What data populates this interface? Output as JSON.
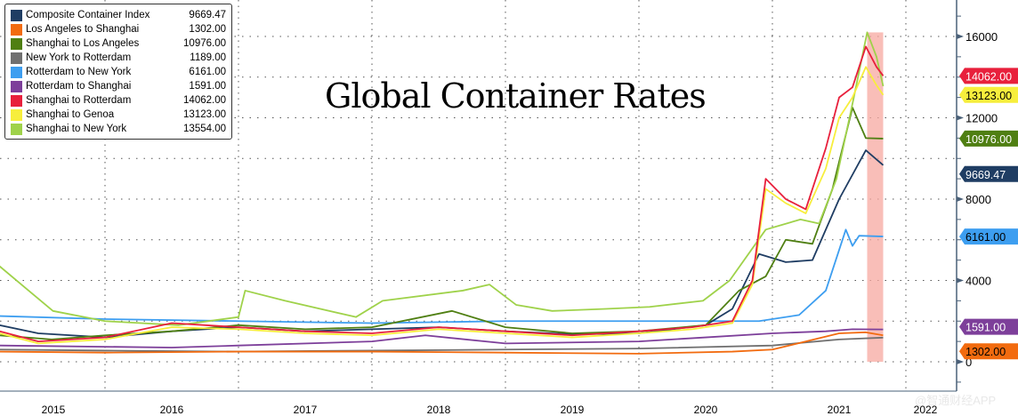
{
  "chart_data": {
    "type": "line",
    "title": "Global Container Rates",
    "xlabel": "",
    "ylabel": "",
    "xlim": [
      2015.21,
      2022.38
    ],
    "ylim": [
      -800,
      18500
    ],
    "yticks": [
      0,
      4000,
      8000,
      12000,
      16000
    ],
    "hidden_yticks": [
      2000,
      10000
    ],
    "xtick_labels": [
      "2015",
      "2016",
      "2017",
      "2018",
      "2019",
      "2020",
      "2021",
      "2022"
    ],
    "highlight_range": [
      2021.71,
      2021.83
    ],
    "grid": true,
    "legend_position": "top-left",
    "series": [
      {
        "name": "Composite Container Index",
        "last": "9669.47",
        "color": "#1f3d63",
        "label_text_color": "#fff",
        "points": [
          [
            2015.21,
            1800
          ],
          [
            2015.5,
            1400
          ],
          [
            2016,
            1200
          ],
          [
            2016.5,
            1500
          ],
          [
            2017,
            1700
          ],
          [
            2017.5,
            1500
          ],
          [
            2018,
            1600
          ],
          [
            2018.5,
            1700
          ],
          [
            2019,
            1500
          ],
          [
            2019.5,
            1350
          ],
          [
            2020,
            1400
          ],
          [
            2020.5,
            1800
          ],
          [
            2020.7,
            2600
          ],
          [
            2020.9,
            5300
          ],
          [
            2021.1,
            4900
          ],
          [
            2021.3,
            5000
          ],
          [
            2021.5,
            8000
          ],
          [
            2021.7,
            10400
          ],
          [
            2021.83,
            9669
          ]
        ]
      },
      {
        "name": "Los Angeles to Shanghai",
        "last": "1302.00",
        "color": "#f26b0f",
        "label_text_color": "#000",
        "points": [
          [
            2015.21,
            500
          ],
          [
            2016,
            450
          ],
          [
            2017,
            500
          ],
          [
            2018,
            500
          ],
          [
            2019,
            450
          ],
          [
            2020,
            400
          ],
          [
            2020.7,
            500
          ],
          [
            2021,
            600
          ],
          [
            2021.5,
            1400
          ],
          [
            2021.7,
            1450
          ],
          [
            2021.83,
            1302
          ]
        ]
      },
      {
        "name": "Shanghai to Los Angeles",
        "last": "10976.00",
        "color": "#4f7f12",
        "label_text_color": "#fff",
        "points": [
          [
            2015.21,
            1300
          ],
          [
            2015.6,
            1100
          ],
          [
            2016,
            1300
          ],
          [
            2016.5,
            1500
          ],
          [
            2017,
            1800
          ],
          [
            2017.5,
            1600
          ],
          [
            2018,
            1700
          ],
          [
            2018.6,
            2500
          ],
          [
            2019,
            1700
          ],
          [
            2019.5,
            1400
          ],
          [
            2020,
            1500
          ],
          [
            2020.5,
            1800
          ],
          [
            2020.75,
            3500
          ],
          [
            2020.95,
            4200
          ],
          [
            2021.1,
            6000
          ],
          [
            2021.3,
            5800
          ],
          [
            2021.45,
            8500
          ],
          [
            2021.6,
            12500
          ],
          [
            2021.7,
            11000
          ],
          [
            2021.83,
            10976
          ]
        ]
      },
      {
        "name": "New York to Rotterdam",
        "last": "1189.00",
        "color": "#707070",
        "label_text_color": "#fff",
        "points": [
          [
            2015.21,
            600
          ],
          [
            2016,
            550
          ],
          [
            2017,
            500
          ],
          [
            2018,
            550
          ],
          [
            2019,
            600
          ],
          [
            2020,
            650
          ],
          [
            2021,
            800
          ],
          [
            2021.5,
            1100
          ],
          [
            2021.83,
            1189
          ]
        ]
      },
      {
        "name": "Rotterdam to New York",
        "last": "6161.00",
        "color": "#3d9ef0",
        "label_text_color": "#000",
        "points": [
          [
            2015.21,
            2250
          ],
          [
            2016,
            2100
          ],
          [
            2017,
            2000
          ],
          [
            2018,
            1900
          ],
          [
            2019,
            2000
          ],
          [
            2020,
            2000
          ],
          [
            2020.9,
            2000
          ],
          [
            2021.2,
            2300
          ],
          [
            2021.4,
            3500
          ],
          [
            2021.55,
            6500
          ],
          [
            2021.6,
            5700
          ],
          [
            2021.65,
            6200
          ],
          [
            2021.83,
            6161
          ]
        ]
      },
      {
        "name": "Rotterdam to Shanghai",
        "last": "1591.00",
        "color": "#7d3f9a",
        "label_text_color": "#fff",
        "points": [
          [
            2015.21,
            800
          ],
          [
            2016.5,
            700
          ],
          [
            2017,
            800
          ],
          [
            2018,
            1000
          ],
          [
            2018.4,
            1300
          ],
          [
            2019,
            900
          ],
          [
            2020,
            1000
          ],
          [
            2020.5,
            1200
          ],
          [
            2021,
            1400
          ],
          [
            2021.4,
            1500
          ],
          [
            2021.6,
            1600
          ],
          [
            2021.83,
            1591
          ]
        ]
      },
      {
        "name": "Shanghai to Rotterdam",
        "last": "14062.00",
        "color": "#e8203c",
        "label_text_color": "#fff",
        "points": [
          [
            2015.21,
            1500
          ],
          [
            2015.5,
            1000
          ],
          [
            2016,
            1200
          ],
          [
            2016.5,
            1900
          ],
          [
            2017,
            1700
          ],
          [
            2017.5,
            1500
          ],
          [
            2018,
            1400
          ],
          [
            2018.5,
            1700
          ],
          [
            2019,
            1500
          ],
          [
            2019.5,
            1300
          ],
          [
            2020,
            1500
          ],
          [
            2020.4,
            1700
          ],
          [
            2020.7,
            2000
          ],
          [
            2020.85,
            4000
          ],
          [
            2020.95,
            9000
          ],
          [
            2021.1,
            8000
          ],
          [
            2021.25,
            7500
          ],
          [
            2021.4,
            10500
          ],
          [
            2021.5,
            13000
          ],
          [
            2021.6,
            13500
          ],
          [
            2021.7,
            15500
          ],
          [
            2021.78,
            14500
          ],
          [
            2021.83,
            14062
          ]
        ]
      },
      {
        "name": "Shanghai to Genoa",
        "last": "13123.00",
        "color": "#f7ee3c",
        "label_text_color": "#000",
        "points": [
          [
            2015.21,
            1400
          ],
          [
            2015.5,
            900
          ],
          [
            2016,
            1100
          ],
          [
            2016.5,
            1700
          ],
          [
            2017,
            1600
          ],
          [
            2017.5,
            1400
          ],
          [
            2018,
            1300
          ],
          [
            2018.5,
            1600
          ],
          [
            2019,
            1400
          ],
          [
            2019.5,
            1200
          ],
          [
            2020,
            1400
          ],
          [
            2020.4,
            1600
          ],
          [
            2020.7,
            1900
          ],
          [
            2020.85,
            3800
          ],
          [
            2020.95,
            8500
          ],
          [
            2021.1,
            7800
          ],
          [
            2021.25,
            7300
          ],
          [
            2021.4,
            9500
          ],
          [
            2021.5,
            12000
          ],
          [
            2021.6,
            13000
          ],
          [
            2021.7,
            14500
          ],
          [
            2021.78,
            13600
          ],
          [
            2021.83,
            13123
          ]
        ]
      },
      {
        "name": "Shanghai to New York",
        "last": "13554.00",
        "color": "#9fd24a",
        "label_text_color": "#000",
        "points": [
          [
            2015.21,
            4700
          ],
          [
            2015.41,
            3600
          ],
          [
            2015.61,
            2500
          ],
          [
            2016,
            2000
          ],
          [
            2016.55,
            1800
          ],
          [
            2017,
            2200
          ],
          [
            2017.05,
            3500
          ],
          [
            2017.35,
            3000
          ],
          [
            2017.88,
            2200
          ],
          [
            2018.08,
            3000
          ],
          [
            2018.68,
            3500
          ],
          [
            2018.88,
            3800
          ],
          [
            2019.08,
            2800
          ],
          [
            2019.35,
            2500
          ],
          [
            2019.75,
            2600
          ],
          [
            2020.08,
            2700
          ],
          [
            2020.48,
            3000
          ],
          [
            2020.68,
            4000
          ],
          [
            2020.95,
            6500
          ],
          [
            2021.21,
            7000
          ],
          [
            2021.35,
            6800
          ],
          [
            2021.48,
            9000
          ],
          [
            2021.61,
            13000
          ],
          [
            2021.71,
            16200
          ],
          [
            2021.78,
            15000
          ],
          [
            2021.83,
            13554
          ]
        ]
      }
    ]
  },
  "watermark": "@智通财经APP"
}
